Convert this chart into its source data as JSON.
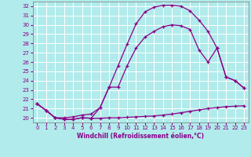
{
  "xlabel": "Windchill (Refroidissement éolien,°C)",
  "background_color": "#b2ebeb",
  "grid_color": "#ffffff",
  "line_color": "#880088",
  "xlim": [
    -0.5,
    23.5
  ],
  "ylim": [
    19.5,
    32.5
  ],
  "yticks": [
    20,
    21,
    22,
    23,
    24,
    25,
    26,
    27,
    28,
    29,
    30,
    31,
    32
  ],
  "xticks": [
    0,
    1,
    2,
    3,
    4,
    5,
    6,
    7,
    8,
    9,
    10,
    11,
    12,
    13,
    14,
    15,
    16,
    17,
    18,
    19,
    20,
    21,
    22,
    23
  ],
  "line1_x": [
    0,
    1,
    2,
    3,
    4,
    5,
    6,
    7,
    8,
    9,
    10,
    11,
    12,
    13,
    14,
    15,
    16,
    17,
    18,
    19,
    20,
    21,
    22,
    23
  ],
  "line1_y": [
    21.5,
    20.8,
    20.0,
    19.85,
    19.85,
    20.0,
    19.95,
    19.95,
    20.0,
    20.0,
    20.05,
    20.1,
    20.15,
    20.2,
    20.3,
    20.4,
    20.55,
    20.7,
    20.85,
    21.0,
    21.1,
    21.2,
    21.25,
    21.3
  ],
  "line2_x": [
    0,
    1,
    2,
    3,
    4,
    5,
    6,
    7,
    8,
    9,
    10,
    11,
    12,
    13,
    14,
    15,
    16,
    17,
    18,
    19,
    20,
    21,
    22,
    23
  ],
  "line2_y": [
    21.5,
    20.8,
    20.0,
    20.0,
    20.1,
    20.3,
    20.4,
    21.1,
    23.3,
    23.3,
    25.6,
    27.5,
    28.7,
    29.3,
    29.8,
    30.0,
    29.9,
    29.5,
    27.3,
    26.0,
    27.5,
    24.4,
    24.0,
    23.2
  ],
  "line3_x": [
    0,
    1,
    2,
    3,
    4,
    5,
    6,
    7,
    8,
    9,
    10,
    11,
    12,
    13,
    14,
    15,
    16,
    17,
    18,
    19,
    20,
    21,
    22,
    23
  ],
  "line3_y": [
    21.5,
    20.8,
    20.0,
    19.85,
    19.85,
    20.0,
    19.95,
    21.1,
    23.3,
    25.6,
    27.9,
    30.1,
    31.4,
    31.9,
    32.1,
    32.1,
    32.0,
    31.5,
    30.5,
    29.3,
    27.5,
    24.4,
    24.0,
    23.2
  ]
}
